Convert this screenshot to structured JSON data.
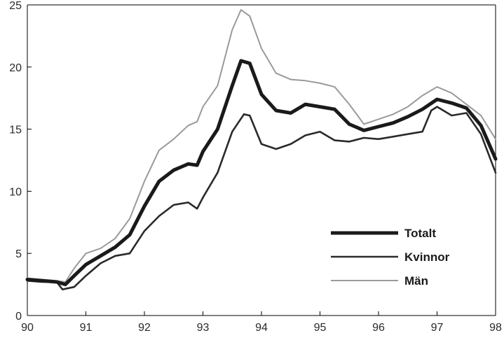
{
  "chart_data": {
    "type": "line",
    "title": "",
    "xlabel": "",
    "ylabel": "",
    "xlim": [
      1990,
      1998
    ],
    "ylim": [
      0,
      25
    ],
    "x_ticks": [
      {
        "value": 1990,
        "label": "90"
      },
      {
        "value": 1991,
        "label": "91"
      },
      {
        "value": 1992,
        "label": "92"
      },
      {
        "value": 1993,
        "label": "93"
      },
      {
        "value": 1994,
        "label": "94"
      },
      {
        "value": 1995,
        "label": "95"
      },
      {
        "value": 1996,
        "label": "96"
      },
      {
        "value": 1997,
        "label": "97"
      },
      {
        "value": 1998,
        "label": "98"
      }
    ],
    "y_ticks": [
      {
        "value": 0,
        "label": "0"
      },
      {
        "value": 5,
        "label": "5"
      },
      {
        "value": 10,
        "label": "10"
      },
      {
        "value": 15,
        "label": "15"
      },
      {
        "value": 20,
        "label": "20"
      },
      {
        "value": 25,
        "label": "25"
      }
    ],
    "grid": false,
    "legend_position": "bottom-right",
    "series": [
      {
        "name": "Totalt",
        "color": "#1a1a1a",
        "line_style": "thick",
        "points": [
          [
            1990.0,
            2.9
          ],
          [
            1990.25,
            2.8
          ],
          [
            1990.5,
            2.7
          ],
          [
            1990.65,
            2.5
          ],
          [
            1990.8,
            3.2
          ],
          [
            1991.0,
            4.1
          ],
          [
            1991.25,
            4.8
          ],
          [
            1991.5,
            5.5
          ],
          [
            1991.75,
            6.5
          ],
          [
            1992.0,
            8.8
          ],
          [
            1992.25,
            10.8
          ],
          [
            1992.5,
            11.7
          ],
          [
            1992.75,
            12.2
          ],
          [
            1992.9,
            12.1
          ],
          [
            1993.0,
            13.2
          ],
          [
            1993.25,
            15.0
          ],
          [
            1993.5,
            18.5
          ],
          [
            1993.65,
            20.5
          ],
          [
            1993.8,
            20.3
          ],
          [
            1994.0,
            17.8
          ],
          [
            1994.25,
            16.5
          ],
          [
            1994.5,
            16.3
          ],
          [
            1994.75,
            17.0
          ],
          [
            1995.0,
            16.8
          ],
          [
            1995.25,
            16.6
          ],
          [
            1995.5,
            15.4
          ],
          [
            1995.75,
            14.9
          ],
          [
            1996.0,
            15.2
          ],
          [
            1996.25,
            15.5
          ],
          [
            1996.5,
            16.0
          ],
          [
            1996.75,
            16.6
          ],
          [
            1997.0,
            17.4
          ],
          [
            1997.25,
            17.1
          ],
          [
            1997.5,
            16.7
          ],
          [
            1997.75,
            15.3
          ],
          [
            1998.0,
            12.6
          ]
        ]
      },
      {
        "name": "Kvinnor",
        "color": "#2a2a2a",
        "line_style": "medium",
        "points": [
          [
            1990.0,
            2.8
          ],
          [
            1990.25,
            2.7
          ],
          [
            1990.5,
            2.7
          ],
          [
            1990.6,
            2.1
          ],
          [
            1990.8,
            2.3
          ],
          [
            1991.0,
            3.2
          ],
          [
            1991.25,
            4.2
          ],
          [
            1991.5,
            4.8
          ],
          [
            1991.75,
            5.0
          ],
          [
            1992.0,
            6.8
          ],
          [
            1992.25,
            8.0
          ],
          [
            1992.5,
            8.9
          ],
          [
            1992.75,
            9.1
          ],
          [
            1992.9,
            8.6
          ],
          [
            1993.0,
            9.5
          ],
          [
            1993.25,
            11.5
          ],
          [
            1993.5,
            14.8
          ],
          [
            1993.7,
            16.2
          ],
          [
            1993.8,
            16.1
          ],
          [
            1994.0,
            13.8
          ],
          [
            1994.25,
            13.4
          ],
          [
            1994.5,
            13.8
          ],
          [
            1994.75,
            14.5
          ],
          [
            1995.0,
            14.8
          ],
          [
            1995.25,
            14.1
          ],
          [
            1995.5,
            14.0
          ],
          [
            1995.75,
            14.3
          ],
          [
            1996.0,
            14.2
          ],
          [
            1996.25,
            14.4
          ],
          [
            1996.5,
            14.6
          ],
          [
            1996.75,
            14.8
          ],
          [
            1996.9,
            16.5
          ],
          [
            1997.0,
            16.8
          ],
          [
            1997.25,
            16.1
          ],
          [
            1997.5,
            16.3
          ],
          [
            1997.75,
            14.6
          ],
          [
            1998.0,
            11.5
          ]
        ]
      },
      {
        "name": "Män",
        "color": "#9a9a9a",
        "line_style": "thin",
        "points": [
          [
            1990.0,
            3.0
          ],
          [
            1990.25,
            2.9
          ],
          [
            1990.5,
            2.8
          ],
          [
            1990.65,
            2.7
          ],
          [
            1990.8,
            3.8
          ],
          [
            1991.0,
            5.0
          ],
          [
            1991.25,
            5.4
          ],
          [
            1991.5,
            6.2
          ],
          [
            1991.75,
            7.8
          ],
          [
            1992.0,
            10.8
          ],
          [
            1992.25,
            13.3
          ],
          [
            1992.5,
            14.2
          ],
          [
            1992.75,
            15.3
          ],
          [
            1992.9,
            15.6
          ],
          [
            1993.0,
            16.8
          ],
          [
            1993.25,
            18.5
          ],
          [
            1993.5,
            23.0
          ],
          [
            1993.65,
            24.6
          ],
          [
            1993.8,
            24.1
          ],
          [
            1994.0,
            21.5
          ],
          [
            1994.25,
            19.5
          ],
          [
            1994.5,
            19.0
          ],
          [
            1994.75,
            18.9
          ],
          [
            1995.0,
            18.7
          ],
          [
            1995.25,
            18.4
          ],
          [
            1995.5,
            17.0
          ],
          [
            1995.75,
            15.4
          ],
          [
            1996.0,
            15.8
          ],
          [
            1996.25,
            16.2
          ],
          [
            1996.5,
            16.8
          ],
          [
            1996.75,
            17.7
          ],
          [
            1997.0,
            18.4
          ],
          [
            1997.25,
            17.9
          ],
          [
            1997.5,
            17.0
          ],
          [
            1997.75,
            16.1
          ],
          [
            1998.0,
            14.2
          ]
        ]
      }
    ]
  }
}
